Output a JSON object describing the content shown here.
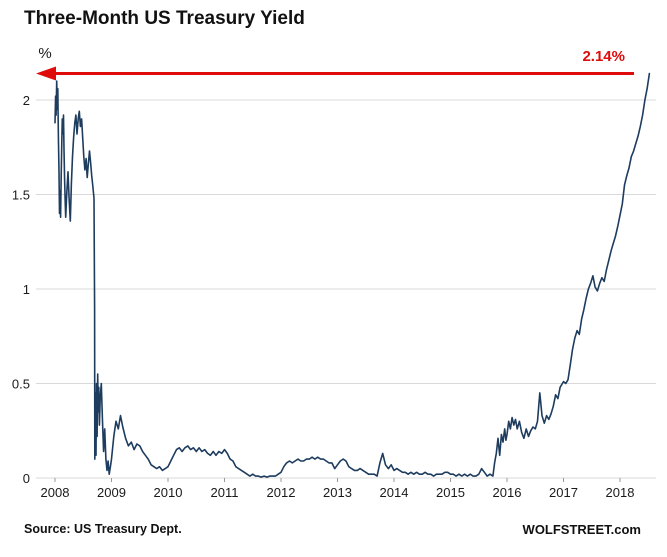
{
  "header": {
    "title": "Three-Month US Treasury Yield"
  },
  "footer": {
    "source": "Source: US Treasury Dept.",
    "branding": "WOLFSTREET.com"
  },
  "chart_data": {
    "type": "line",
    "title": "Three-Month US Treasury Yield",
    "xlabel": "",
    "ylabel": "%",
    "series_name": "3-month US Treasury yield",
    "x_ticks": [
      "2008",
      "2009",
      "2010",
      "2011",
      "2012",
      "2013",
      "2014",
      "2015",
      "2016",
      "2017",
      "2018"
    ],
    "y_ticks": [
      0,
      0.5,
      1,
      1.5,
      2
    ],
    "y_tick_labels": [
      "0",
      "0.5",
      "1",
      "1.5",
      "2"
    ],
    "xlim": [
      2008,
      2018.6
    ],
    "ylim": [
      0,
      2.3
    ],
    "grid": "horizontal",
    "legend": "none",
    "colors": {
      "line": "#1d3c5e",
      "grid": "#d9d9d9",
      "text": "#1a1a1a"
    },
    "annotation": {
      "label": "2.14%",
      "value": 2.14,
      "type": "arrow-left",
      "color": "#e00b0b"
    },
    "points": [
      [
        2008.0,
        1.88
      ],
      [
        2008.01,
        2.02
      ],
      [
        2008.02,
        1.92
      ],
      [
        2008.03,
        2.1
      ],
      [
        2008.04,
        1.95
      ],
      [
        2008.05,
        2.06
      ],
      [
        2008.06,
        1.8
      ],
      [
        2008.07,
        1.62
      ],
      [
        2008.08,
        1.4
      ],
      [
        2008.09,
        1.52
      ],
      [
        2008.1,
        1.38
      ],
      [
        2008.11,
        1.6
      ],
      [
        2008.12,
        1.78
      ],
      [
        2008.13,
        1.9
      ],
      [
        2008.14,
        1.82
      ],
      [
        2008.15,
        1.92
      ],
      [
        2008.16,
        1.74
      ],
      [
        2008.17,
        1.58
      ],
      [
        2008.18,
        1.46
      ],
      [
        2008.19,
        1.38
      ],
      [
        2008.21,
        1.52
      ],
      [
        2008.23,
        1.62
      ],
      [
        2008.25,
        1.48
      ],
      [
        2008.27,
        1.36
      ],
      [
        2008.29,
        1.56
      ],
      [
        2008.31,
        1.7
      ],
      [
        2008.33,
        1.8
      ],
      [
        2008.35,
        1.88
      ],
      [
        2008.37,
        1.92
      ],
      [
        2008.39,
        1.82
      ],
      [
        2008.41,
        1.9
      ],
      [
        2008.43,
        1.94
      ],
      [
        2008.45,
        1.86
      ],
      [
        2008.47,
        1.9
      ],
      [
        2008.49,
        1.8
      ],
      [
        2008.51,
        1.7
      ],
      [
        2008.53,
        1.63
      ],
      [
        2008.55,
        1.69
      ],
      [
        2008.57,
        1.59
      ],
      [
        2008.59,
        1.66
      ],
      [
        2008.61,
        1.73
      ],
      [
        2008.63,
        1.67
      ],
      [
        2008.65,
        1.6
      ],
      [
        2008.67,
        1.54
      ],
      [
        2008.69,
        1.48
      ],
      [
        2008.7,
        0.9
      ],
      [
        2008.705,
        0.1
      ],
      [
        2008.715,
        0.45
      ],
      [
        2008.725,
        0.12
      ],
      [
        2008.735,
        0.5
      ],
      [
        2008.745,
        0.22
      ],
      [
        2008.755,
        0.55
      ],
      [
        2008.765,
        0.35
      ],
      [
        2008.775,
        0.48
      ],
      [
        2008.785,
        0.28
      ],
      [
        2008.8,
        0.42
      ],
      [
        2008.82,
        0.5
      ],
      [
        2008.84,
        0.3
      ],
      [
        2008.86,
        0.14
      ],
      [
        2008.88,
        0.26
      ],
      [
        2008.9,
        0.1
      ],
      [
        2008.92,
        0.04
      ],
      [
        2008.94,
        0.09
      ],
      [
        2008.96,
        0.02
      ],
      [
        2008.98,
        0.06
      ],
      [
        2009.0,
        0.1
      ],
      [
        2009.04,
        0.22
      ],
      [
        2009.08,
        0.3
      ],
      [
        2009.12,
        0.26
      ],
      [
        2009.16,
        0.33
      ],
      [
        2009.2,
        0.27
      ],
      [
        2009.25,
        0.21
      ],
      [
        2009.3,
        0.17
      ],
      [
        2009.35,
        0.19
      ],
      [
        2009.4,
        0.15
      ],
      [
        2009.45,
        0.18
      ],
      [
        2009.5,
        0.17
      ],
      [
        2009.55,
        0.14
      ],
      [
        2009.6,
        0.12
      ],
      [
        2009.65,
        0.1
      ],
      [
        2009.7,
        0.07
      ],
      [
        2009.75,
        0.06
      ],
      [
        2009.8,
        0.05
      ],
      [
        2009.85,
        0.06
      ],
      [
        2009.9,
        0.04
      ],
      [
        2009.95,
        0.05
      ],
      [
        2010.0,
        0.06
      ],
      [
        2010.05,
        0.09
      ],
      [
        2010.1,
        0.12
      ],
      [
        2010.15,
        0.15
      ],
      [
        2010.2,
        0.16
      ],
      [
        2010.25,
        0.14
      ],
      [
        2010.3,
        0.16
      ],
      [
        2010.35,
        0.17
      ],
      [
        2010.4,
        0.15
      ],
      [
        2010.45,
        0.16
      ],
      [
        2010.5,
        0.14
      ],
      [
        2010.55,
        0.16
      ],
      [
        2010.6,
        0.14
      ],
      [
        2010.65,
        0.15
      ],
      [
        2010.7,
        0.13
      ],
      [
        2010.75,
        0.12
      ],
      [
        2010.8,
        0.14
      ],
      [
        2010.85,
        0.12
      ],
      [
        2010.9,
        0.14
      ],
      [
        2010.95,
        0.13
      ],
      [
        2011.0,
        0.15
      ],
      [
        2011.05,
        0.13
      ],
      [
        2011.1,
        0.1
      ],
      [
        2011.15,
        0.09
      ],
      [
        2011.2,
        0.06
      ],
      [
        2011.25,
        0.05
      ],
      [
        2011.3,
        0.04
      ],
      [
        2011.35,
        0.03
      ],
      [
        2011.4,
        0.02
      ],
      [
        2011.45,
        0.01
      ],
      [
        2011.5,
        0.02
      ],
      [
        2011.55,
        0.01
      ],
      [
        2011.6,
        0.01
      ],
      [
        2011.65,
        0.005
      ],
      [
        2011.7,
        0.01
      ],
      [
        2011.75,
        0.005
      ],
      [
        2011.8,
        0.01
      ],
      [
        2011.85,
        0.01
      ],
      [
        2011.9,
        0.01
      ],
      [
        2011.95,
        0.02
      ],
      [
        2012.0,
        0.03
      ],
      [
        2012.05,
        0.06
      ],
      [
        2012.1,
        0.08
      ],
      [
        2012.15,
        0.09
      ],
      [
        2012.2,
        0.08
      ],
      [
        2012.25,
        0.09
      ],
      [
        2012.3,
        0.1
      ],
      [
        2012.35,
        0.09
      ],
      [
        2012.4,
        0.09
      ],
      [
        2012.45,
        0.1
      ],
      [
        2012.5,
        0.1
      ],
      [
        2012.55,
        0.11
      ],
      [
        2012.6,
        0.1
      ],
      [
        2012.65,
        0.11
      ],
      [
        2012.7,
        0.1
      ],
      [
        2012.75,
        0.1
      ],
      [
        2012.8,
        0.09
      ],
      [
        2012.85,
        0.08
      ],
      [
        2012.9,
        0.08
      ],
      [
        2012.95,
        0.05
      ],
      [
        2013.0,
        0.07
      ],
      [
        2013.05,
        0.09
      ],
      [
        2013.1,
        0.1
      ],
      [
        2013.15,
        0.09
      ],
      [
        2013.2,
        0.06
      ],
      [
        2013.25,
        0.05
      ],
      [
        2013.3,
        0.04
      ],
      [
        2013.35,
        0.04
      ],
      [
        2013.4,
        0.05
      ],
      [
        2013.45,
        0.04
      ],
      [
        2013.5,
        0.03
      ],
      [
        2013.55,
        0.02
      ],
      [
        2013.6,
        0.02
      ],
      [
        2013.65,
        0.02
      ],
      [
        2013.7,
        0.01
      ],
      [
        2013.75,
        0.08
      ],
      [
        2013.8,
        0.13
      ],
      [
        2013.85,
        0.07
      ],
      [
        2013.9,
        0.05
      ],
      [
        2013.95,
        0.07
      ],
      [
        2014.0,
        0.04
      ],
      [
        2014.05,
        0.05
      ],
      [
        2014.1,
        0.04
      ],
      [
        2014.15,
        0.03
      ],
      [
        2014.2,
        0.03
      ],
      [
        2014.25,
        0.02
      ],
      [
        2014.3,
        0.03
      ],
      [
        2014.35,
        0.02
      ],
      [
        2014.4,
        0.03
      ],
      [
        2014.45,
        0.02
      ],
      [
        2014.5,
        0.02
      ],
      [
        2014.55,
        0.03
      ],
      [
        2014.6,
        0.02
      ],
      [
        2014.65,
        0.02
      ],
      [
        2014.7,
        0.01
      ],
      [
        2014.75,
        0.02
      ],
      [
        2014.8,
        0.02
      ],
      [
        2014.85,
        0.02
      ],
      [
        2014.9,
        0.03
      ],
      [
        2014.95,
        0.03
      ],
      [
        2015.0,
        0.02
      ],
      [
        2015.05,
        0.02
      ],
      [
        2015.1,
        0.01
      ],
      [
        2015.15,
        0.02
      ],
      [
        2015.2,
        0.01
      ],
      [
        2015.25,
        0.02
      ],
      [
        2015.3,
        0.01
      ],
      [
        2015.35,
        0.02
      ],
      [
        2015.4,
        0.01
      ],
      [
        2015.45,
        0.01
      ],
      [
        2015.5,
        0.02
      ],
      [
        2015.55,
        0.05
      ],
      [
        2015.6,
        0.03
      ],
      [
        2015.65,
        0.01
      ],
      [
        2015.7,
        0.02
      ],
      [
        2015.75,
        0.01
      ],
      [
        2015.78,
        0.08
      ],
      [
        2015.81,
        0.13
      ],
      [
        2015.84,
        0.21
      ],
      [
        2015.87,
        0.12
      ],
      [
        2015.9,
        0.23
      ],
      [
        2015.93,
        0.19
      ],
      [
        2015.96,
        0.26
      ],
      [
        2015.98,
        0.2
      ],
      [
        2016.0,
        0.23
      ],
      [
        2016.03,
        0.3
      ],
      [
        2016.06,
        0.26
      ],
      [
        2016.09,
        0.32
      ],
      [
        2016.12,
        0.28
      ],
      [
        2016.15,
        0.31
      ],
      [
        2016.18,
        0.26
      ],
      [
        2016.22,
        0.3
      ],
      [
        2016.26,
        0.24
      ],
      [
        2016.3,
        0.21
      ],
      [
        2016.34,
        0.26
      ],
      [
        2016.38,
        0.22
      ],
      [
        2016.42,
        0.25
      ],
      [
        2016.46,
        0.27
      ],
      [
        2016.5,
        0.26
      ],
      [
        2016.54,
        0.3
      ],
      [
        2016.58,
        0.45
      ],
      [
        2016.62,
        0.33
      ],
      [
        2016.66,
        0.29
      ],
      [
        2016.7,
        0.33
      ],
      [
        2016.74,
        0.31
      ],
      [
        2016.78,
        0.34
      ],
      [
        2016.82,
        0.38
      ],
      [
        2016.86,
        0.44
      ],
      [
        2016.9,
        0.42
      ],
      [
        2016.94,
        0.48
      ],
      [
        2016.98,
        0.5
      ],
      [
        2017.0,
        0.51
      ],
      [
        2017.04,
        0.5
      ],
      [
        2017.08,
        0.52
      ],
      [
        2017.12,
        0.6
      ],
      [
        2017.16,
        0.68
      ],
      [
        2017.2,
        0.74
      ],
      [
        2017.24,
        0.78
      ],
      [
        2017.28,
        0.76
      ],
      [
        2017.32,
        0.84
      ],
      [
        2017.36,
        0.89
      ],
      [
        2017.4,
        0.95
      ],
      [
        2017.44,
        1.0
      ],
      [
        2017.48,
        1.03
      ],
      [
        2017.52,
        1.07
      ],
      [
        2017.56,
        1.01
      ],
      [
        2017.6,
        0.99
      ],
      [
        2017.64,
        1.03
      ],
      [
        2017.68,
        1.06
      ],
      [
        2017.72,
        1.04
      ],
      [
        2017.76,
        1.1
      ],
      [
        2017.8,
        1.15
      ],
      [
        2017.84,
        1.2
      ],
      [
        2017.88,
        1.24
      ],
      [
        2017.92,
        1.28
      ],
      [
        2017.96,
        1.33
      ],
      [
        2018.0,
        1.39
      ],
      [
        2018.04,
        1.45
      ],
      [
        2018.08,
        1.55
      ],
      [
        2018.12,
        1.6
      ],
      [
        2018.16,
        1.64
      ],
      [
        2018.2,
        1.7
      ],
      [
        2018.24,
        1.73
      ],
      [
        2018.28,
        1.77
      ],
      [
        2018.32,
        1.81
      ],
      [
        2018.36,
        1.86
      ],
      [
        2018.4,
        1.92
      ],
      [
        2018.44,
        2.0
      ],
      [
        2018.48,
        2.06
      ],
      [
        2018.52,
        2.14
      ]
    ]
  }
}
